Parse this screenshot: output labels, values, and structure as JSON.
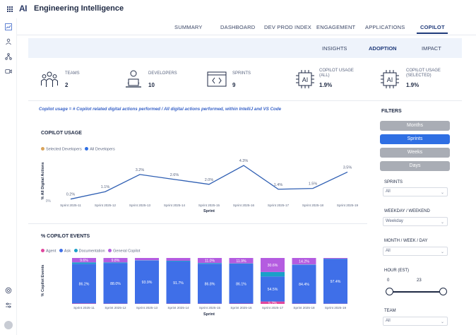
{
  "app": {
    "logo": "AI",
    "title": "Engineering Intelligence"
  },
  "nav_primary": [
    {
      "label": "SUMMARY",
      "active": false
    },
    {
      "label": "DASHBOARD",
      "active": false
    },
    {
      "label": "DEV PROD INDEX",
      "active": false
    },
    {
      "label": "ENGAGEMENT",
      "active": false
    },
    {
      "label": "APPLICATIONS",
      "active": false
    },
    {
      "label": "COPILOT",
      "active": true
    }
  ],
  "nav_secondary": [
    {
      "label": "INSIGHTS",
      "active": false
    },
    {
      "label": "ADOPTION",
      "active": true
    },
    {
      "label": "IMPACT",
      "active": false
    }
  ],
  "kpis": [
    {
      "label": "TEAMS",
      "value": "2",
      "icon": "teams-icon"
    },
    {
      "label": "DEVELOPERS",
      "value": "10",
      "icon": "developer-icon"
    },
    {
      "label": "SPRINTS",
      "value": "9",
      "icon": "code-icon"
    },
    {
      "label": "COPILOT USAGE (ALL)",
      "value": "1.9%",
      "icon": "ai-chip-icon"
    },
    {
      "label": "COPILOT USAGE (SELECTED)",
      "value": "1.9%",
      "icon": "ai-chip-icon"
    }
  ],
  "formula_text": "Copilot usage = # Copilot related digital actions performed / All digital actions performed, within IntelliJ and VS Code",
  "colors": {
    "primary_dark": "#1f3a7a",
    "line": "#2f5fb3",
    "selected_developers": "#d9a35a",
    "all_developers": "#2f6fe3",
    "agent": "#e0479e",
    "ask": "#3f6fe8",
    "documentation": "#1aa0c9",
    "general_copilot": "#b45ce0",
    "filter_active": "#2f6fe3",
    "filter_inactive": "#a9adb5"
  },
  "chart_data": [
    {
      "type": "line",
      "title": "COPILOT USAGE",
      "legend": [
        "Selected Developers",
        "All Developers"
      ],
      "ylabel": "% All Digital Actions",
      "xlabel": "Sprint",
      "y_ticks": [
        "0%"
      ],
      "ylim": [
        0,
        5
      ],
      "categories": [
        "Sprint 2025-11",
        "Sprint 2025-12",
        "Sprint 2025-13",
        "Sprint 2025-14",
        "Sprint 2025-15",
        "Sprint 2025-16",
        "Sprint 2025-17",
        "Sprint 2025-18",
        "Sprint 2025-19"
      ],
      "series": [
        {
          "name": "All Developers",
          "values": [
            0.2,
            1.1,
            3.2,
            2.6,
            2.0,
            4.3,
            1.4,
            1.5,
            3.5
          ],
          "labels": [
            "0.2%",
            "1.1%",
            "3.2%",
            "2.6%",
            "2.0%",
            "4.3%",
            "1.4%",
            "1.5%",
            "3.5%"
          ]
        }
      ]
    },
    {
      "type": "bar",
      "stacked": true,
      "title": "% COPILOT EVENTS",
      "legend": [
        "Agent",
        "Ask",
        "Documentation",
        "General Copilot"
      ],
      "ylabel": "% Copilot Events",
      "xlabel": "Sprint",
      "ylim": [
        0,
        100
      ],
      "categories": [
        "Sprint 2025-11",
        "Sprint 2025-12",
        "Sprint 2025-13",
        "Sprint 2025-14",
        "Sprint 2025-15",
        "Sprint 2025-16",
        "Sprint 2025-17",
        "Sprint 2025-18",
        "Sprint 2025-19"
      ],
      "series": [
        {
          "name": "Agent",
          "values": [
            1.0,
            0.6,
            0.5,
            0.6,
            0.6,
            0.8,
            5.2,
            0.6,
            0.5
          ]
        },
        {
          "name": "Ask",
          "values": [
            86.2,
            88.0,
            93.9,
            91.7,
            86.8,
            86.1,
            54.5,
            84.4,
            97.4
          ]
        },
        {
          "name": "Documentation",
          "values": [
            3.2,
            1.6,
            0.6,
            1.5,
            1.6,
            1.2,
            9.7,
            0.8,
            0.5
          ]
        },
        {
          "name": "General Copilot",
          "values": [
            9.6,
            9.8,
            5.0,
            6.2,
            11.0,
            11.9,
            30.6,
            14.2,
            1.6
          ]
        }
      ],
      "data_labels": {
        "Agent": [
          "",
          "",
          "",
          "",
          "",
          "",
          "5.2%",
          "",
          ""
        ],
        "Ask": [
          "86.2%",
          "88.0%",
          "93.9%",
          "91.7%",
          "86.8%",
          "86.1%",
          "54.5%",
          "84.4%",
          "97.4%"
        ],
        "General Copilot": [
          "9.6%",
          "9.8%",
          "",
          "",
          "11.0%",
          "11.9%",
          "30.6%",
          "14.2%",
          ""
        ]
      }
    }
  ],
  "filters": {
    "title": "FILTERS",
    "period_buttons": [
      {
        "label": "Months",
        "active": false
      },
      {
        "label": "Sprints",
        "active": true
      },
      {
        "label": "Weeks",
        "active": false
      },
      {
        "label": "Days",
        "active": false
      }
    ],
    "sprints": {
      "label": "SPRINTS",
      "value": "All"
    },
    "weekday": {
      "label": "WEEKDAY / WEEKEND",
      "value": "Weekday"
    },
    "month_week_day": {
      "label": "MONTH / WEEK / DAY",
      "value": "All"
    },
    "hour": {
      "label": "HOUR (EST)",
      "min": "0",
      "max": "23",
      "range": [
        0,
        23
      ]
    },
    "team": {
      "label": "TEAM",
      "value": "All"
    }
  }
}
